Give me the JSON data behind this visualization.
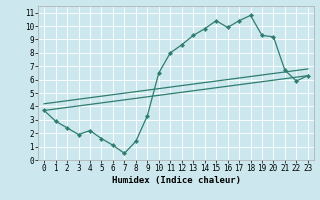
{
  "title": "",
  "xlabel": "Humidex (Indice chaleur)",
  "ylabel": "",
  "bg_color": "#cce8ee",
  "line_color": "#2e7d6e",
  "grid_color": "#ffffff",
  "xlim": [
    -0.5,
    23.5
  ],
  "ylim": [
    0,
    11.5
  ],
  "xticks": [
    0,
    1,
    2,
    3,
    4,
    5,
    6,
    7,
    8,
    9,
    10,
    11,
    12,
    13,
    14,
    15,
    16,
    17,
    18,
    19,
    20,
    21,
    22,
    23
  ],
  "yticks": [
    0,
    1,
    2,
    3,
    4,
    5,
    6,
    7,
    8,
    9,
    10,
    11
  ],
  "line1_x": [
    0,
    1,
    2,
    3,
    4,
    5,
    6,
    7,
    8,
    9,
    10,
    11,
    12,
    13,
    14,
    15,
    16,
    17,
    18,
    19,
    20,
    21,
    22,
    23
  ],
  "line1_y": [
    3.7,
    2.9,
    2.4,
    1.9,
    2.2,
    1.6,
    1.1,
    0.5,
    1.4,
    3.3,
    6.5,
    8.0,
    8.6,
    9.3,
    9.8,
    10.4,
    9.9,
    10.4,
    10.8,
    9.3,
    9.2,
    6.7,
    5.9,
    6.3
  ],
  "line2_x": [
    0,
    23
  ],
  "line2_y": [
    3.7,
    6.3
  ],
  "line3_x": [
    0,
    23
  ],
  "line3_y": [
    4.2,
    6.8
  ],
  "marker": "D",
  "markersize": 2.2,
  "linewidth": 0.9,
  "xlabel_fontsize": 6.5,
  "tick_fontsize": 5.5
}
